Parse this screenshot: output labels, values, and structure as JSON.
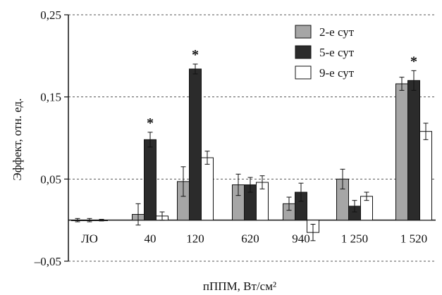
{
  "chart_data": {
    "type": "bar",
    "xlabel": "пППМ, Вт/см²",
    "ylabel": "Эффект, отн. ед.",
    "ylim": [
      -0.05,
      0.25
    ],
    "yticks": [
      {
        "value": 0.25,
        "label": "0,25"
      },
      {
        "value": 0.15,
        "label": "0,15"
      },
      {
        "value": 0.05,
        "label": "0,05"
      },
      {
        "value": -0.05,
        "label": "–0,05"
      }
    ],
    "grid": "dashed horizontal at tick values",
    "legend": "top-right",
    "categories": [
      "ЛО",
      "40",
      "120",
      "620",
      "940",
      "1 250",
      "1 520"
    ],
    "series": [
      {
        "name": "2-е сут",
        "color": "#a6a6a6",
        "values": [
          0.0,
          0.007,
          0.047,
          0.043,
          0.02,
          0.05,
          0.166
        ],
        "errors": [
          0.002,
          0.013,
          0.018,
          0.013,
          0.008,
          0.012,
          0.008
        ]
      },
      {
        "name": "5-е сут",
        "color": "#2b2b2b",
        "values": [
          0.0,
          0.098,
          0.184,
          0.043,
          0.034,
          0.017,
          0.17
        ],
        "errors": [
          0.002,
          0.009,
          0.006,
          0.009,
          0.011,
          0.007,
          0.012
        ]
      },
      {
        "name": "9-е сут",
        "color": "#ffffff",
        "values": [
          0.0,
          0.005,
          0.076,
          0.046,
          -0.015,
          0.029,
          0.108
        ],
        "errors": [
          0.001,
          0.005,
          0.008,
          0.008,
          0.01,
          0.005,
          0.01
        ]
      }
    ],
    "annotations": [
      {
        "text": "*",
        "category": "40",
        "series": "5-е сут"
      },
      {
        "text": "*",
        "category": "120",
        "series": "5-е сут"
      },
      {
        "text": "*",
        "category": "1 520",
        "series": "5-е сут"
      }
    ]
  }
}
